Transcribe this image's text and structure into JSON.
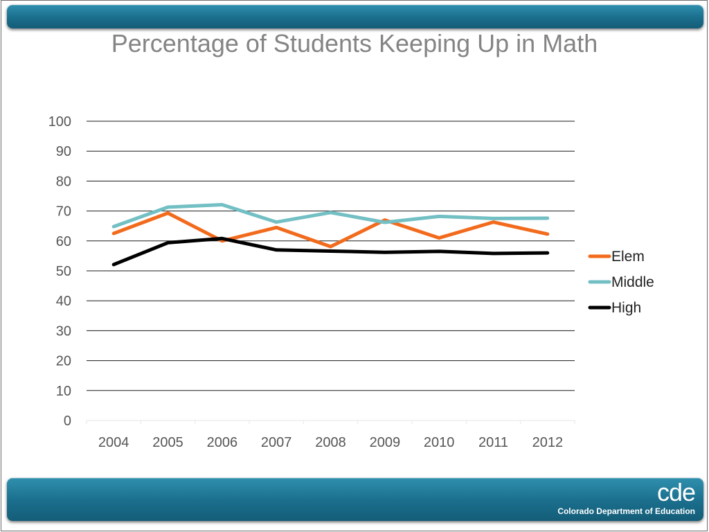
{
  "slide": {
    "title": "Percentage of Students Keeping Up in Math",
    "logo": {
      "mark": "cde",
      "organization": "Colorado Department of Education"
    },
    "colors": {
      "banner": "#1a6e8c"
    }
  },
  "chart_data": {
    "type": "line",
    "title": "Percentage of Students Keeping Up in Math",
    "xlabel": "",
    "ylabel": "",
    "categories": [
      "2004",
      "2005",
      "2006",
      "2007",
      "2008",
      "2009",
      "2010",
      "2011",
      "2012"
    ],
    "ylim": [
      0,
      100
    ],
    "yticks": [
      0,
      10,
      20,
      30,
      40,
      50,
      60,
      70,
      80,
      90,
      100
    ],
    "grid": true,
    "legend": "right",
    "series": [
      {
        "name": "Elem",
        "color": "#f26b1d",
        "values": [
          62.5,
          69.3,
          60.0,
          64.5,
          58.1,
          67.0,
          61.0,
          66.3,
          62.3
        ]
      },
      {
        "name": "Middle",
        "color": "#72bfc4",
        "values": [
          64.8,
          71.3,
          72.1,
          66.3,
          69.5,
          66.2,
          68.2,
          67.5,
          67.6
        ]
      },
      {
        "name": "High",
        "color": "#000000",
        "values": [
          52.1,
          59.4,
          60.8,
          57.0,
          56.6,
          56.2,
          56.5,
          55.8,
          56.0
        ]
      }
    ]
  }
}
